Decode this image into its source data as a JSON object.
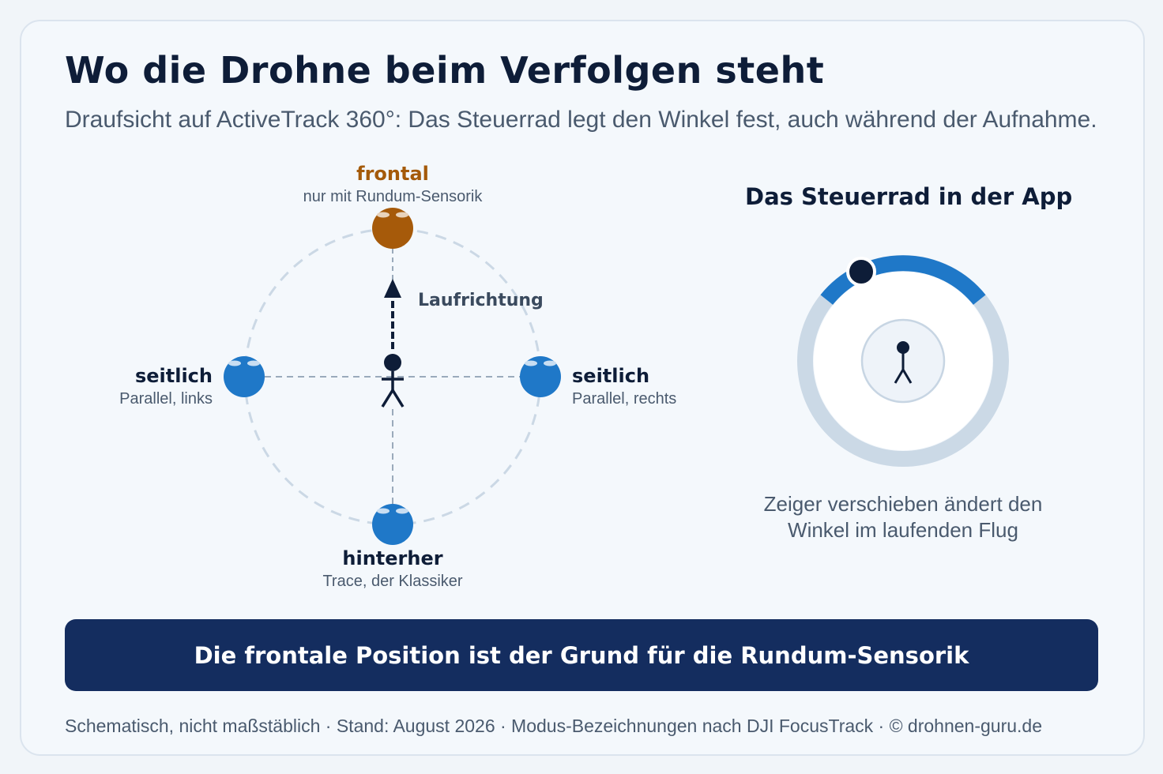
{
  "title": "Wo die Drohne beim Verfolgen steht",
  "subtitle": "Draufsicht auf ActiveTrack 360°: Das Steuerrad legt den Winkel fest, auch während der Aufnahme.",
  "diagram": {
    "direction_label": "Laufrichtung",
    "positions": {
      "front": {
        "label": "frontal",
        "sub": "nur mit Rundum-Sensorik"
      },
      "left": {
        "label": "seitlich",
        "sub": "Parallel, links"
      },
      "right": {
        "label": "seitlich",
        "sub": "Parallel, rechts"
      },
      "back": {
        "label": "hinterher",
        "sub": "Trace, der Klassiker"
      }
    }
  },
  "wheel": {
    "title": "Das Steuerrad in der App",
    "caption_line1": "Zeiger verschieben ändert den",
    "caption_line2": "Winkel im laufenden Flug"
  },
  "banner": "Die frontale Position ist der Grund für die Rundum-Sensorik",
  "footer": "Schematisch, nicht maßstäblich · Stand: August 2026 · Modus-Bezeichnungen nach DJI FocusTrack · © drohnen-guru.de",
  "colors": {
    "drone_blue": "#1f78c8",
    "drone_front": "#a65a0a",
    "banner_bg": "#142d5f",
    "dark": "#0e1d38"
  }
}
